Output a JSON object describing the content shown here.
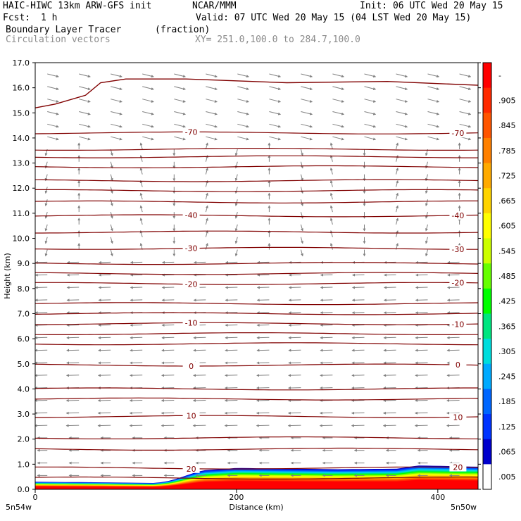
{
  "header": {
    "title_left": "HAIC-HIWC 13km ARW-GFS init",
    "org": "NCAR/MMM",
    "init": "Init: 06 UTC Wed 20 May 15",
    "fcst_label": "Fcst:",
    "fcst_value": "1 h",
    "valid": "Valid: 07 UTC Wed 20 May 15 (04 LST Wed 20 May 15)",
    "field_name": "Boundary Layer Tracer",
    "field_units": "(fraction)",
    "vectors_label": "Circulation vectors",
    "xy_label": "XY= 251.0,100.0 to 284.7,100.0"
  },
  "chart_data": {
    "type": "cross-section",
    "ylabel": "Height (km)",
    "xlabel": "Distance (km)",
    "ylim": [
      0.0,
      17.0
    ],
    "xlim": [
      0,
      440
    ],
    "y_ticks": [
      "0.0",
      "1.0",
      "2.0",
      "3.0",
      "4.0",
      "5.0",
      "6.0",
      "7.0",
      "8.0",
      "9.0",
      "10.0",
      "11.0",
      "12.0",
      "13.0",
      "14.0",
      "15.0",
      "16.0",
      "17.0"
    ],
    "x_ticks": [
      "0",
      "200",
      "400"
    ],
    "x_end_labels": {
      "left": "5n54w",
      "right": "5n50w"
    },
    "colorbar": {
      "labels": [
        "-",
        ".905",
        ".845",
        ".785",
        ".725",
        ".665",
        ".605",
        ".545",
        ".485",
        ".425",
        ".365",
        ".305",
        ".245",
        ".185",
        ".125",
        ".065",
        ".005"
      ],
      "colors": [
        "#ff0000",
        "#ff2a00",
        "#ff5500",
        "#ff8000",
        "#ffaa00",
        "#ffd400",
        "#ffff00",
        "#ccff00",
        "#66ff00",
        "#00ff00",
        "#00e680",
        "#00dddd",
        "#00aaff",
        "#0066ff",
        "#0033ff",
        "#0000cc",
        "#ffffff"
      ]
    },
    "contour_color": "#800000",
    "vector_color": "#808080",
    "temperature_contours": [
      {
        "label": "20",
        "height": 0.85
      },
      {
        "label": "10",
        "height": 2.9
      },
      {
        "label": "0",
        "height": 4.95
      },
      {
        "label": "-10",
        "height": 6.6
      },
      {
        "label": "-20",
        "height": 8.2
      },
      {
        "label": "-30",
        "height": 9.6
      },
      {
        "label": "-40",
        "height": 10.9
      },
      {
        "label": "-70",
        "height": 14.2
      }
    ],
    "unlabeled_contours": [
      0.45,
      1.6,
      2.05,
      3.6,
      4.0,
      5.8,
      6.2,
      7.0,
      7.4,
      8.6,
      9.0,
      10.25,
      11.45,
      11.9,
      12.3,
      12.85,
      13.25,
      13.55
    ],
    "tropopause": {
      "x": [
        0,
        20,
        50,
        65,
        90,
        150,
        250,
        350,
        440
      ],
      "y": [
        15.2,
        15.35,
        15.7,
        16.2,
        16.35,
        16.35,
        16.2,
        16.25,
        16.1
      ]
    },
    "terrain": {
      "x": [
        0,
        60,
        120,
        135,
        150,
        165,
        200,
        300,
        360,
        380,
        440
      ],
      "y": [
        0.3,
        0.28,
        0.25,
        0.35,
        0.55,
        0.75,
        0.85,
        0.8,
        0.82,
        0.95,
        0.9
      ]
    }
  }
}
